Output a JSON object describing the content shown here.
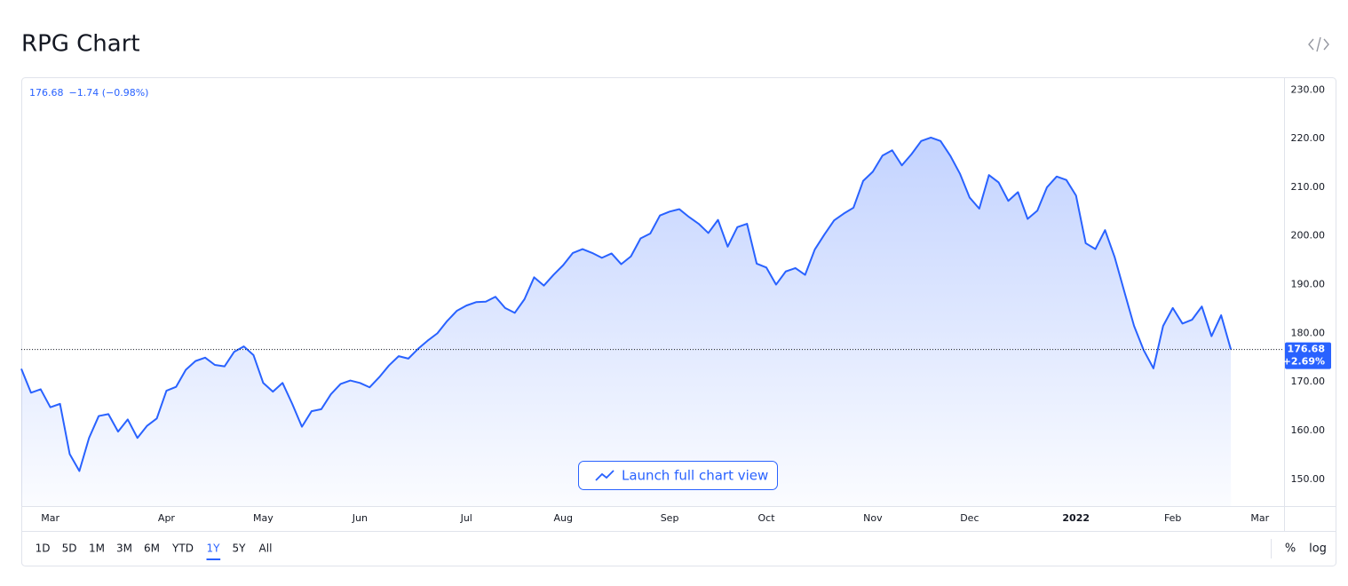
{
  "chart_data": {
    "type": "area",
    "title": "RPG Chart",
    "change": "−1.74 (−0.98%)",
    "axis_change": "+2.69%",
    "launch_button": "Launch full chart view",
    "categories": [
      null,
      null,
      null,
      "Mar",
      null,
      null,
      null,
      null,
      null,
      null,
      null,
      null,
      null,
      null,
      null,
      "Apr",
      null,
      null,
      null,
      null,
      null,
      null,
      null,
      null,
      null,
      "May",
      null,
      null,
      null,
      null,
      null,
      null,
      null,
      null,
      null,
      "Jun",
      null,
      null,
      null,
      null,
      null,
      null,
      null,
      null,
      null,
      null,
      "Jul",
      null,
      null,
      null,
      null,
      null,
      null,
      null,
      null,
      null,
      "Aug",
      null,
      null,
      null,
      null,
      null,
      null,
      null,
      null,
      null,
      null,
      "Sep",
      null,
      null,
      null,
      null,
      null,
      null,
      null,
      null,
      null,
      "Oct",
      null,
      null,
      null,
      null,
      null,
      null,
      null,
      null,
      null,
      null,
      "Nov",
      null,
      null,
      null,
      null,
      null,
      null,
      null,
      null,
      null,
      "Dec",
      null,
      null,
      null,
      null,
      null,
      null,
      null,
      null,
      null,
      null,
      "2022",
      null,
      null,
      null,
      null,
      null,
      null,
      null,
      null,
      null,
      "Feb",
      null,
      null,
      null,
      null,
      null,
      null,
      null,
      null,
      "Mar",
      null,
      null
    ],
    "series": [
      {
        "name": "RPG",
        "color": "#2962ff",
        "values": [
          172.7,
          167.8,
          168.5,
          164.8,
          165.5,
          155.2,
          151.7,
          158.5,
          163,
          163.4,
          159.8,
          162.3,
          158.5,
          161,
          162.5,
          168.2,
          169,
          172.5,
          174.3,
          175,
          173.5,
          173.2,
          176.2,
          177.3,
          175.5,
          169.8,
          168,
          169.8,
          165.5,
          160.8,
          164,
          164.4,
          167.5,
          169.6,
          170.3,
          169.8,
          168.9,
          171,
          173.4,
          175.3,
          174.8,
          176.8,
          178.5,
          180,
          182.5,
          184.6,
          185.7,
          186.4,
          186.5,
          187.5,
          185.2,
          184.2,
          187,
          191.5,
          189.8,
          192,
          194,
          196.5,
          197.3,
          196.5,
          195.5,
          196.4,
          194.2,
          195.8,
          199.5,
          200.5,
          204.2,
          205,
          205.5,
          203.9,
          202.5,
          200.6,
          203.3,
          197.8,
          201.8,
          202.5,
          194.3,
          193.5,
          190,
          192.7,
          193.4,
          192,
          197.2,
          200.3,
          203.2,
          204.6,
          205.8,
          211.3,
          213.2,
          216.5,
          217.6,
          214.5,
          216.8,
          219.5,
          220.2,
          219.5,
          216.5,
          212.8,
          207.9,
          205.6,
          212.5,
          211,
          207.2,
          209,
          203.5,
          205.2,
          210,
          212.2,
          211.5,
          208.3,
          198.5,
          197.3,
          201.2,
          195.6,
          188.5,
          181.5,
          176.5,
          172.8,
          181.5,
          185.2,
          182,
          182.8,
          185.5,
          179.4,
          183.7,
          176.68,
          null,
          null,
          null,
          null,
          null
        ]
      }
    ],
    "ylim": [
      144.5,
      232.6
    ],
    "yticks": [
      {
        "value": 150,
        "label": "150.00"
      },
      {
        "value": 160,
        "label": "160.00"
      },
      {
        "value": 170,
        "label": "170.00"
      },
      {
        "value": 180,
        "label": "180.00"
      },
      {
        "value": 190,
        "label": "190.00"
      },
      {
        "value": 200,
        "label": "200.00"
      },
      {
        "value": 210,
        "label": "210.00"
      },
      {
        "value": 220,
        "label": "220.00"
      },
      {
        "value": 230,
        "label": "230.00"
      }
    ],
    "grid": false,
    "ranges": [
      "1D",
      "5D",
      "1M",
      "3M",
      "6M",
      "YTD",
      "1Y",
      "5Y",
      "All"
    ],
    "active_range": 6,
    "scale_options": [
      "%",
      "log"
    ]
  }
}
